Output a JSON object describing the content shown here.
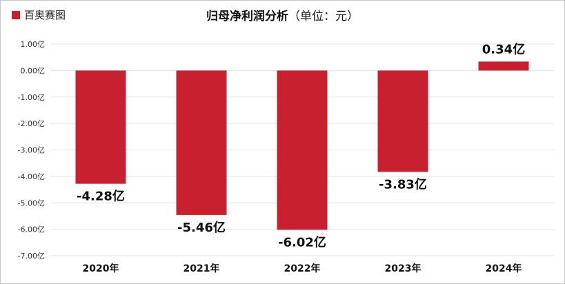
{
  "legend": {
    "label": "百奥赛图",
    "color": "#c8202f"
  },
  "title": {
    "main": "归母净利润分析",
    "unit": "（单位：元）"
  },
  "chart_data": {
    "type": "bar",
    "categories": [
      "2020年",
      "2021年",
      "2022年",
      "2023年",
      "2024年"
    ],
    "series": [
      {
        "name": "百奥赛图",
        "values": [
          -4.28,
          -5.46,
          -6.02,
          -3.83,
          0.34
        ],
        "color": "#c8202f"
      }
    ],
    "data_labels": [
      "-4.28亿",
      "-5.46亿",
      "-6.02亿",
      "-3.83亿",
      "0.34亿"
    ],
    "yticks": [
      1,
      0,
      -1,
      -2,
      -3,
      -4,
      -5,
      -6,
      -7
    ],
    "ytick_labels": [
      "1.00亿",
      "0.00亿",
      "-1.00亿",
      "-2.00亿",
      "-3.00亿",
      "-4.00亿",
      "-5.00亿",
      "-6.00亿",
      "-7.00亿"
    ],
    "ylim": [
      -7,
      1
    ],
    "grid": true,
    "legend_position": "top-left"
  }
}
